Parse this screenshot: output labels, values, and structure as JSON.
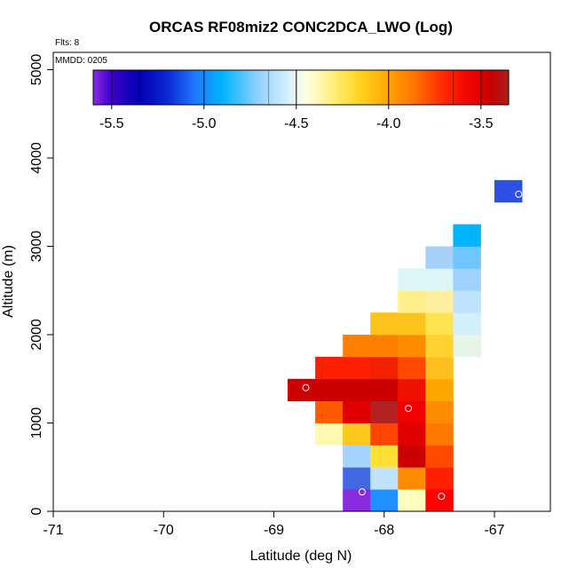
{
  "chart_data": {
    "type": "heatmap",
    "title": "ORCAS RF08miz2 CONC2DCA_LWO (Log)",
    "xlabel": "Latitude (deg N)",
    "ylabel": "Altitude (m)",
    "xlim": [
      -71,
      -66.5
    ],
    "ylim": [
      0,
      5200
    ],
    "xticks": [
      "-71",
      "-70",
      "-69",
      "-68",
      "-67"
    ],
    "yticks": [
      "0",
      "1000",
      "2000",
      "3000",
      "4000",
      "5000"
    ],
    "flights_label": "Flts: 8",
    "mmdd_label": "MMDD: 0205",
    "colorbar": {
      "range": [
        -5.6,
        -3.35
      ],
      "ticks": [
        "-5.5",
        "-5.0",
        "-4.5",
        "-4.0",
        "-3.5"
      ],
      "stops": [
        {
          "v": -5.6,
          "c": "#8a2be2"
        },
        {
          "v": -5.5,
          "c": "#3d00c8"
        },
        {
          "v": -5.35,
          "c": "#0000b4"
        },
        {
          "v": -5.2,
          "c": "#0a28d2"
        },
        {
          "v": -5.05,
          "c": "#1e78ff"
        },
        {
          "v": -4.9,
          "c": "#00b4ff"
        },
        {
          "v": -4.7,
          "c": "#96d2ff"
        },
        {
          "v": -4.55,
          "c": "#d2f0ff"
        },
        {
          "v": -4.45,
          "c": "#ffffe6"
        },
        {
          "v": -4.3,
          "c": "#fff078"
        },
        {
          "v": -4.15,
          "c": "#ffd21e"
        },
        {
          "v": -4.0,
          "c": "#ffa500"
        },
        {
          "v": -3.85,
          "c": "#ff6e00"
        },
        {
          "v": -3.7,
          "c": "#ff2800"
        },
        {
          "v": -3.55,
          "c": "#f00000"
        },
        {
          "v": -3.45,
          "c": "#c80000"
        },
        {
          "v": -3.35,
          "c": "#aa1e1e"
        }
      ]
    },
    "cells": [
      {
        "lon": -68.25,
        "alt": 125,
        "color": "#8a2be2"
      },
      {
        "lon": -68.0,
        "alt": 125,
        "color": "#1e90ff"
      },
      {
        "lon": -67.75,
        "alt": 125,
        "color": "#ffffbe"
      },
      {
        "lon": -67.5,
        "alt": 125,
        "color": "#ff0000"
      },
      {
        "lon": -68.25,
        "alt": 375,
        "color": "#4169e1"
      },
      {
        "lon": -68.0,
        "alt": 375,
        "color": "#bfe3ff"
      },
      {
        "lon": -67.75,
        "alt": 375,
        "color": "#ff8c00"
      },
      {
        "lon": -67.5,
        "alt": 375,
        "color": "#ff2000"
      },
      {
        "lon": -68.25,
        "alt": 625,
        "color": "#a6d4ff"
      },
      {
        "lon": -68.0,
        "alt": 625,
        "color": "#ffe135"
      },
      {
        "lon": -67.75,
        "alt": 625,
        "color": "#cc0000"
      },
      {
        "lon": -67.5,
        "alt": 625,
        "color": "#ff4a00"
      },
      {
        "lon": -68.5,
        "alt": 875,
        "color": "#fff8b0"
      },
      {
        "lon": -68.25,
        "alt": 875,
        "color": "#ffc81e"
      },
      {
        "lon": -68.0,
        "alt": 875,
        "color": "#ff4500"
      },
      {
        "lon": -67.75,
        "alt": 875,
        "color": "#e00000"
      },
      {
        "lon": -67.5,
        "alt": 875,
        "color": "#ff7800"
      },
      {
        "lon": -68.5,
        "alt": 1125,
        "color": "#ff5a00"
      },
      {
        "lon": -68.25,
        "alt": 1125,
        "color": "#e00000"
      },
      {
        "lon": -68.0,
        "alt": 1125,
        "color": "#b22222"
      },
      {
        "lon": -67.75,
        "alt": 1125,
        "color": "#f00000"
      },
      {
        "lon": -67.5,
        "alt": 1125,
        "color": "#ff8c00"
      },
      {
        "lon": -68.75,
        "alt": 1375,
        "color": "#cc0000"
      },
      {
        "lon": -68.5,
        "alt": 1375,
        "color": "#cc0000"
      },
      {
        "lon": -68.25,
        "alt": 1375,
        "color": "#cc0000"
      },
      {
        "lon": -68.0,
        "alt": 1375,
        "color": "#cc0000"
      },
      {
        "lon": -67.75,
        "alt": 1375,
        "color": "#f01000"
      },
      {
        "lon": -67.5,
        "alt": 1375,
        "color": "#ffa500"
      },
      {
        "lon": -68.5,
        "alt": 1625,
        "color": "#ff2000"
      },
      {
        "lon": -68.25,
        "alt": 1625,
        "color": "#ff2000"
      },
      {
        "lon": -68.0,
        "alt": 1625,
        "color": "#f02000"
      },
      {
        "lon": -67.75,
        "alt": 1625,
        "color": "#ff4a00"
      },
      {
        "lon": -67.5,
        "alt": 1625,
        "color": "#ffbf1e"
      },
      {
        "lon": -68.25,
        "alt": 1875,
        "color": "#ff7f00"
      },
      {
        "lon": -68.0,
        "alt": 1875,
        "color": "#ff8000"
      },
      {
        "lon": -67.75,
        "alt": 1875,
        "color": "#ff8c00"
      },
      {
        "lon": -67.5,
        "alt": 1875,
        "color": "#ffd233"
      },
      {
        "lon": -67.25,
        "alt": 1875,
        "color": "#e6f5e6"
      },
      {
        "lon": -68.0,
        "alt": 2125,
        "color": "#ffc31e"
      },
      {
        "lon": -67.75,
        "alt": 2125,
        "color": "#ffc31e"
      },
      {
        "lon": -67.5,
        "alt": 2125,
        "color": "#ffe34f"
      },
      {
        "lon": -67.25,
        "alt": 2125,
        "color": "#d2f0fa"
      },
      {
        "lon": -67.75,
        "alt": 2375,
        "color": "#fff08c"
      },
      {
        "lon": -67.5,
        "alt": 2375,
        "color": "#fff0a0"
      },
      {
        "lon": -67.25,
        "alt": 2375,
        "color": "#bee4ff"
      },
      {
        "lon": -67.75,
        "alt": 2625,
        "color": "#dcf5f5"
      },
      {
        "lon": -67.5,
        "alt": 2625,
        "color": "#dcf5f5"
      },
      {
        "lon": -67.25,
        "alt": 2625,
        "color": "#a0d2ff"
      },
      {
        "lon": -67.5,
        "alt": 2875,
        "color": "#a6d2fa"
      },
      {
        "lon": -67.25,
        "alt": 2875,
        "color": "#6ec8ff"
      },
      {
        "lon": -67.25,
        "alt": 3125,
        "color": "#00b4ff"
      },
      {
        "lon": -66.875,
        "alt": 3625,
        "color": "#2d50e1",
        "w": 0.25
      }
    ],
    "markers": [
      {
        "lon": -68.71,
        "alt": 1400
      },
      {
        "lon": -67.78,
        "alt": 1165
      },
      {
        "lon": -68.2,
        "alt": 220
      },
      {
        "lon": -67.48,
        "alt": 170
      },
      {
        "lon": -66.78,
        "alt": 3590
      }
    ]
  }
}
